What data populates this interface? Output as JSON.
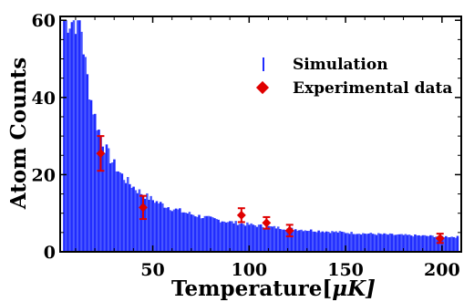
{
  "chart_data": {
    "type": "bar",
    "xlabel_main": "Temperature[",
    "xlabel_mu": "μ",
    "xlabel_unit": "K]",
    "ylabel": "Atom Counts",
    "xlim": [
      2,
      210
    ],
    "ylim": [
      0,
      61
    ],
    "xticks": [
      50,
      100,
      150,
      200
    ],
    "yticks": [
      0,
      20,
      40,
      60
    ],
    "grid": false,
    "legend_position": "top-right",
    "series": [
      {
        "name": "Simulation",
        "style": "histogram",
        "color": "#1f2bff",
        "model": "y = 20 + 590/(x-2.6) for x <= 10, y = 1 + 590/(x-2.6) otherwise, capped at 60",
        "x_start": 4,
        "x_end": 208,
        "bin_width": 1
      },
      {
        "name": "Experimental data",
        "style": "points-with-errorbars",
        "color": "#e00000",
        "points": [
          {
            "x": 23,
            "y": 25.5,
            "err": 4.5
          },
          {
            "x": 45,
            "y": 11.5,
            "err": 3.0
          },
          {
            "x": 96,
            "y": 9.5,
            "err": 1.8
          },
          {
            "x": 109,
            "y": 7.5,
            "err": 1.5
          },
          {
            "x": 121,
            "y": 5.5,
            "err": 1.5
          },
          {
            "x": 199,
            "y": 3.5,
            "err": 1.2
          }
        ]
      }
    ]
  }
}
